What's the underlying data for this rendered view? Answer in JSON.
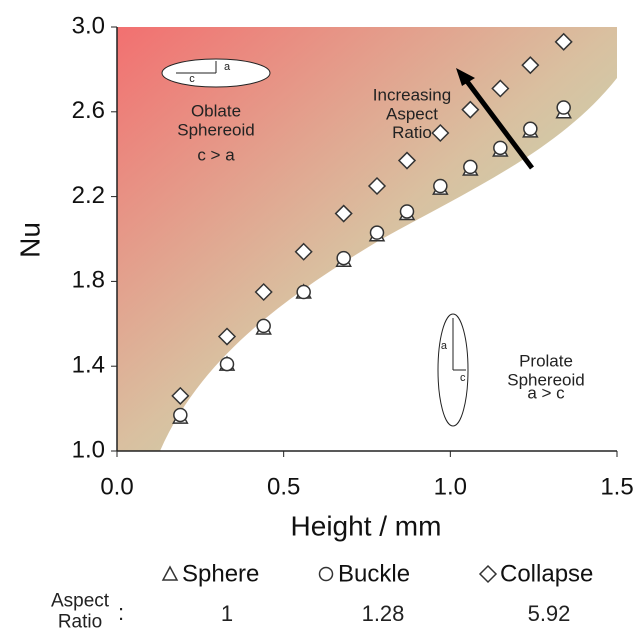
{
  "chart_data": {
    "type": "scatter",
    "xlabel": "Height / mm",
    "ylabel": "Nu",
    "xlim": [
      0,
      1.5
    ],
    "ylim": [
      1.0,
      3.0
    ],
    "xticks": [
      {
        "value": 0,
        "label": "0.0"
      },
      0.5,
      {
        "value": 1,
        "label": "1.0"
      },
      1.5
    ],
    "yticks": [
      {
        "value": 1,
        "label": "1.0"
      },
      1.4,
      1.8,
      2.2,
      2.6,
      {
        "value": 3,
        "label": "3.0"
      }
    ],
    "x": [
      0.19,
      0.33,
      0.44,
      0.56,
      0.68,
      0.78,
      0.87,
      0.97,
      1.06,
      1.15,
      1.24,
      1.34
    ],
    "series": [
      {
        "name": "Sphere",
        "marker": "triangle",
        "color": "#333333",
        "aspect_ratio": 1,
        "values": [
          1.16,
          1.41,
          1.58,
          1.75,
          1.9,
          2.02,
          2.12,
          2.24,
          2.33,
          2.42,
          2.51,
          2.6
        ]
      },
      {
        "name": "Buckle",
        "marker": "circle",
        "color": "#333333",
        "aspect_ratio": 1.28,
        "values": [
          1.17,
          1.41,
          1.59,
          1.75,
          1.91,
          2.03,
          2.13,
          2.25,
          2.34,
          2.43,
          2.52,
          2.62
        ]
      },
      {
        "name": "Collapse",
        "marker": "diamond",
        "color": "#333333",
        "aspect_ratio": 5.92,
        "values": [
          1.26,
          1.54,
          1.75,
          1.94,
          2.12,
          2.25,
          2.37,
          2.5,
          2.61,
          2.71,
          2.82,
          2.93
        ]
      }
    ],
    "aspect_ratio_label": "Aspect Ratio",
    "aspect_ratio_separator": ":",
    "annotations": {
      "oblate_title": "Oblate Sphereoid",
      "oblate_rule": "c > a",
      "oblate_c": "c",
      "oblate_a": "a",
      "arrow_label": "Increasing Aspect Ratio",
      "prolate_title": "Prolate Sphereoid",
      "prolate_rule": "a > c",
      "prolate_a": "a",
      "prolate_c": "c"
    }
  }
}
